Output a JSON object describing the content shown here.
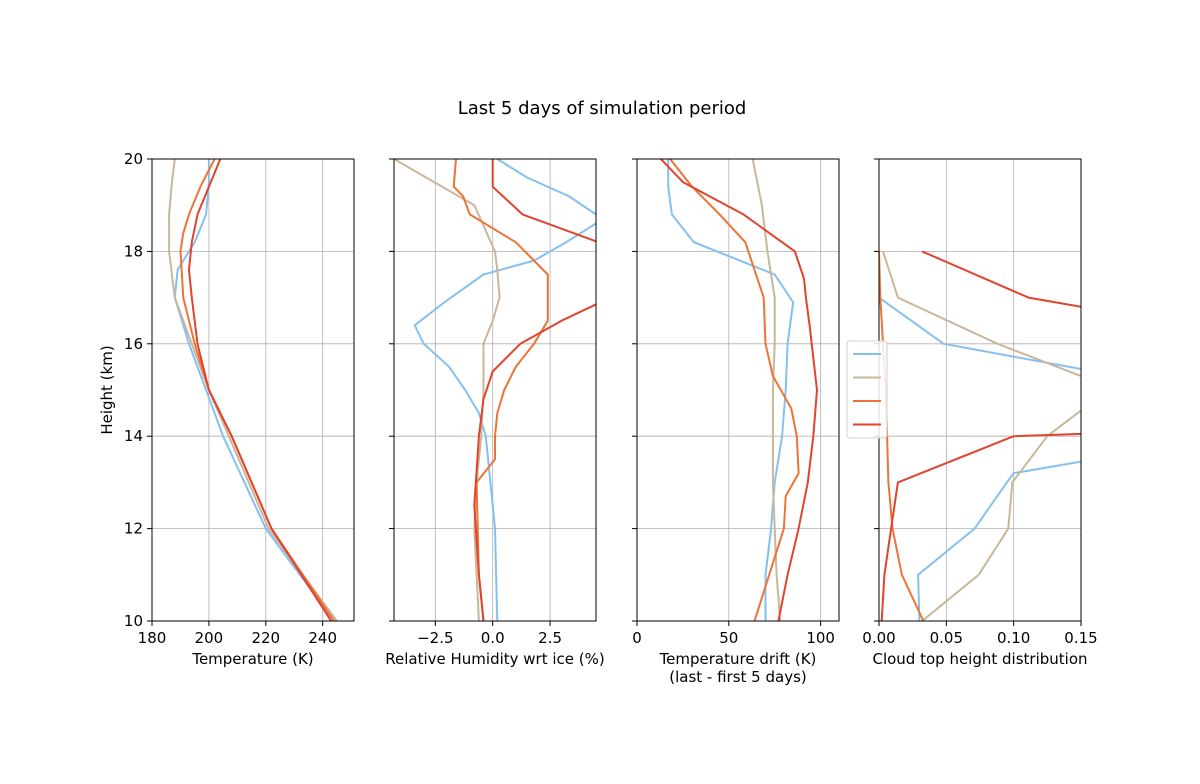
{
  "title": "Last 5 days of simulation period",
  "ylabel": "Height (km)",
  "ylim": [
    10,
    20
  ],
  "yticks": [
    10,
    12,
    14,
    16,
    18,
    20
  ],
  "colors": {
    "light_blue": "#85c0f0",
    "tan": "#c8b79a",
    "orange": "#ee7336",
    "red": "#e2432d"
  },
  "legend": {
    "placement": "right-center",
    "labels": [
      "",
      "",
      "",
      ""
    ]
  },
  "chart_data": [
    {
      "type": "line",
      "xlabel": "Temperature (K)",
      "xlim": [
        180,
        251
      ],
      "xticks": [
        180,
        200,
        220,
        240
      ],
      "xticklabels": [
        "180",
        "200",
        "220",
        "240"
      ],
      "grid": true,
      "series": [
        {
          "color": "#85c0f0",
          "x": [
            244,
            220,
            205,
            199,
            193,
            188,
            189,
            195,
            199,
            200,
            200
          ],
          "y": [
            10,
            12,
            14,
            15,
            16,
            17,
            17.6,
            18.2,
            18.8,
            19.5,
            20
          ]
        },
        {
          "color": "#c8b79a",
          "x": [
            245,
            221,
            207,
            200,
            194,
            188,
            186,
            186,
            187,
            188
          ],
          "y": [
            10,
            12,
            14,
            15,
            16,
            17,
            18,
            18.8,
            19.5,
            20
          ]
        },
        {
          "color": "#ee7336",
          "x": [
            244,
            222,
            208,
            200,
            195,
            191,
            190,
            191,
            193,
            197,
            202
          ],
          "y": [
            10,
            12,
            14,
            15,
            16,
            17,
            18,
            18.4,
            18.8,
            19.4,
            20
          ]
        },
        {
          "color": "#e2432d",
          "x": [
            243,
            222,
            208,
            200,
            196,
            194,
            193,
            194,
            196,
            200,
            204
          ],
          "y": [
            10,
            12,
            14,
            15,
            16,
            17,
            17.6,
            18.2,
            18.8,
            19.4,
            20
          ]
        }
      ]
    },
    {
      "type": "line",
      "xlabel": "Relative Humidity wrt ice (%)",
      "xlim": [
        -4.3,
        4.5
      ],
      "xticks": [
        -2.5,
        0.0,
        2.5
      ],
      "xticklabels": [
        "−2.5",
        "0.0",
        "2.5"
      ],
      "grid": true,
      "series": [
        {
          "color": "#85c0f0",
          "x": [
            0.2,
            0.1,
            -0.1,
            -0.3,
            -0.6,
            -1.2,
            -1.9,
            -3.0,
            -3.4,
            -2.1,
            -0.4,
            1.8,
            3.2,
            4.8,
            3.3,
            1.5,
            0.2
          ],
          "y": [
            10,
            12,
            13,
            14,
            14.5,
            15,
            15.5,
            16,
            16.4,
            16.9,
            17.5,
            17.8,
            18.2,
            18.7,
            19.2,
            19.6,
            20
          ]
        },
        {
          "color": "#c8b79a",
          "x": [
            -0.6,
            -0.8,
            -0.7,
            -0.5,
            -0.4,
            -0.4,
            0.0,
            0.3,
            0.2,
            0.1,
            -0.8,
            -4.3
          ],
          "y": [
            10,
            12,
            13,
            14,
            15,
            16,
            16.5,
            17,
            17.6,
            18,
            19,
            20
          ]
        },
        {
          "color": "#ee7336",
          "x": [
            -0.4,
            -0.6,
            -0.7,
            0.1,
            0.1,
            0.2,
            0.5,
            1.0,
            1.8,
            2.4,
            2.4,
            1.0,
            -1.0,
            -1.3,
            -1.7,
            -1.6
          ],
          "y": [
            10,
            11,
            13,
            13.5,
            14,
            14.5,
            15,
            15.5,
            16,
            16.5,
            17.5,
            18.2,
            18.8,
            19.2,
            19.4,
            20
          ]
        },
        {
          "color": "#e2432d",
          "x": [
            -0.4,
            -0.6,
            -0.8,
            -0.6,
            -0.4,
            0.0,
            0.6,
            1.2,
            3.0,
            4.7,
            4.6,
            1.3,
            0.0,
            0.0,
            0.0
          ],
          "y": [
            10,
            11,
            12.5,
            14,
            14.8,
            15.4,
            15.7,
            16,
            16.5,
            16.9,
            18.2,
            18.8,
            19.4,
            19.6,
            20
          ]
        }
      ]
    },
    {
      "type": "line",
      "xlabel": "Temperature drift (K)",
      "xlabel2": "(last - first 5 days)",
      "xlim": [
        0,
        110
      ],
      "xticks": [
        0,
        50,
        100
      ],
      "xticklabels": [
        "0",
        "50",
        "100"
      ],
      "grid": true,
      "series": [
        {
          "color": "#85c0f0",
          "x": [
            70,
            70,
            73,
            75,
            79,
            81,
            82,
            85,
            75,
            31,
            19,
            17,
            17
          ],
          "y": [
            10,
            11,
            12,
            13,
            14,
            15,
            16,
            16.9,
            17.5,
            18.2,
            18.8,
            19.4,
            20
          ]
        },
        {
          "color": "#c8b79a",
          "x": [
            78,
            76,
            75,
            74,
            74,
            74,
            75,
            75,
            71,
            68,
            63
          ],
          "y": [
            10,
            11,
            12,
            13,
            14,
            15,
            16,
            17,
            18,
            19,
            20
          ]
        },
        {
          "color": "#ee7336",
          "x": [
            64,
            80,
            81,
            88,
            87,
            84,
            74,
            70,
            69,
            64,
            59,
            45,
            30,
            18
          ],
          "y": [
            10,
            12,
            12.7,
            13.2,
            14,
            14.6,
            15.3,
            16,
            17,
            17.6,
            18.2,
            18.8,
            19.4,
            20
          ]
        },
        {
          "color": "#e2432d",
          "x": [
            77,
            82,
            88,
            93,
            96,
            98,
            96,
            94,
            92,
            91,
            86,
            58,
            25,
            13
          ],
          "y": [
            10,
            11,
            12,
            13,
            14,
            15,
            15.7,
            16.4,
            17,
            17.4,
            18,
            18.8,
            19.5,
            20
          ]
        }
      ]
    },
    {
      "type": "line",
      "xlabel": "Cloud top height distribution",
      "xlim": [
        0,
        0.15
      ],
      "xticks": [
        0,
        0.05,
        0.1,
        0.15
      ],
      "xticklabels": [
        "0.00",
        "0.05",
        "0.10",
        "0.15"
      ],
      "grid": true,
      "series": [
        {
          "color": "#85c0f0",
          "x": [
            0.03,
            0.029,
            0.071,
            0.095,
            0.1,
            0.16,
            0.2,
            0.2,
            0.16,
            0.048,
            0.0,
            0.0
          ],
          "y": [
            10,
            11,
            12,
            13,
            13.2,
            13.5,
            14.3,
            15.1,
            15.4,
            16,
            17,
            18
          ]
        },
        {
          "color": "#c8b79a",
          "x": [
            0.032,
            0.074,
            0.096,
            0.099,
            0.125,
            0.17,
            0.2,
            0.2,
            0.15,
            0.088,
            0.014,
            0.003
          ],
          "y": [
            10,
            11,
            12,
            13,
            14,
            15,
            15,
            15.2,
            15.3,
            16,
            17,
            18
          ]
        },
        {
          "color": "#ee7336",
          "x": [
            0.033,
            0.017,
            0.01,
            0.007,
            0.006,
            0.005,
            0.004,
            0.003,
            0.002,
            0.001,
            0.0
          ],
          "y": [
            10,
            11,
            12,
            13,
            14,
            15,
            15.5,
            16,
            16.5,
            17,
            18
          ]
        },
        {
          "color": "#e2432d",
          "x": [
            0.002,
            0.004,
            0.009,
            0.014,
            0.1,
            0.2,
            0.2,
            0.15,
            0.111,
            0.032
          ],
          "y": [
            10,
            11,
            12,
            13,
            14,
            14.1,
            16.5,
            16.8,
            17,
            18
          ]
        }
      ]
    }
  ]
}
